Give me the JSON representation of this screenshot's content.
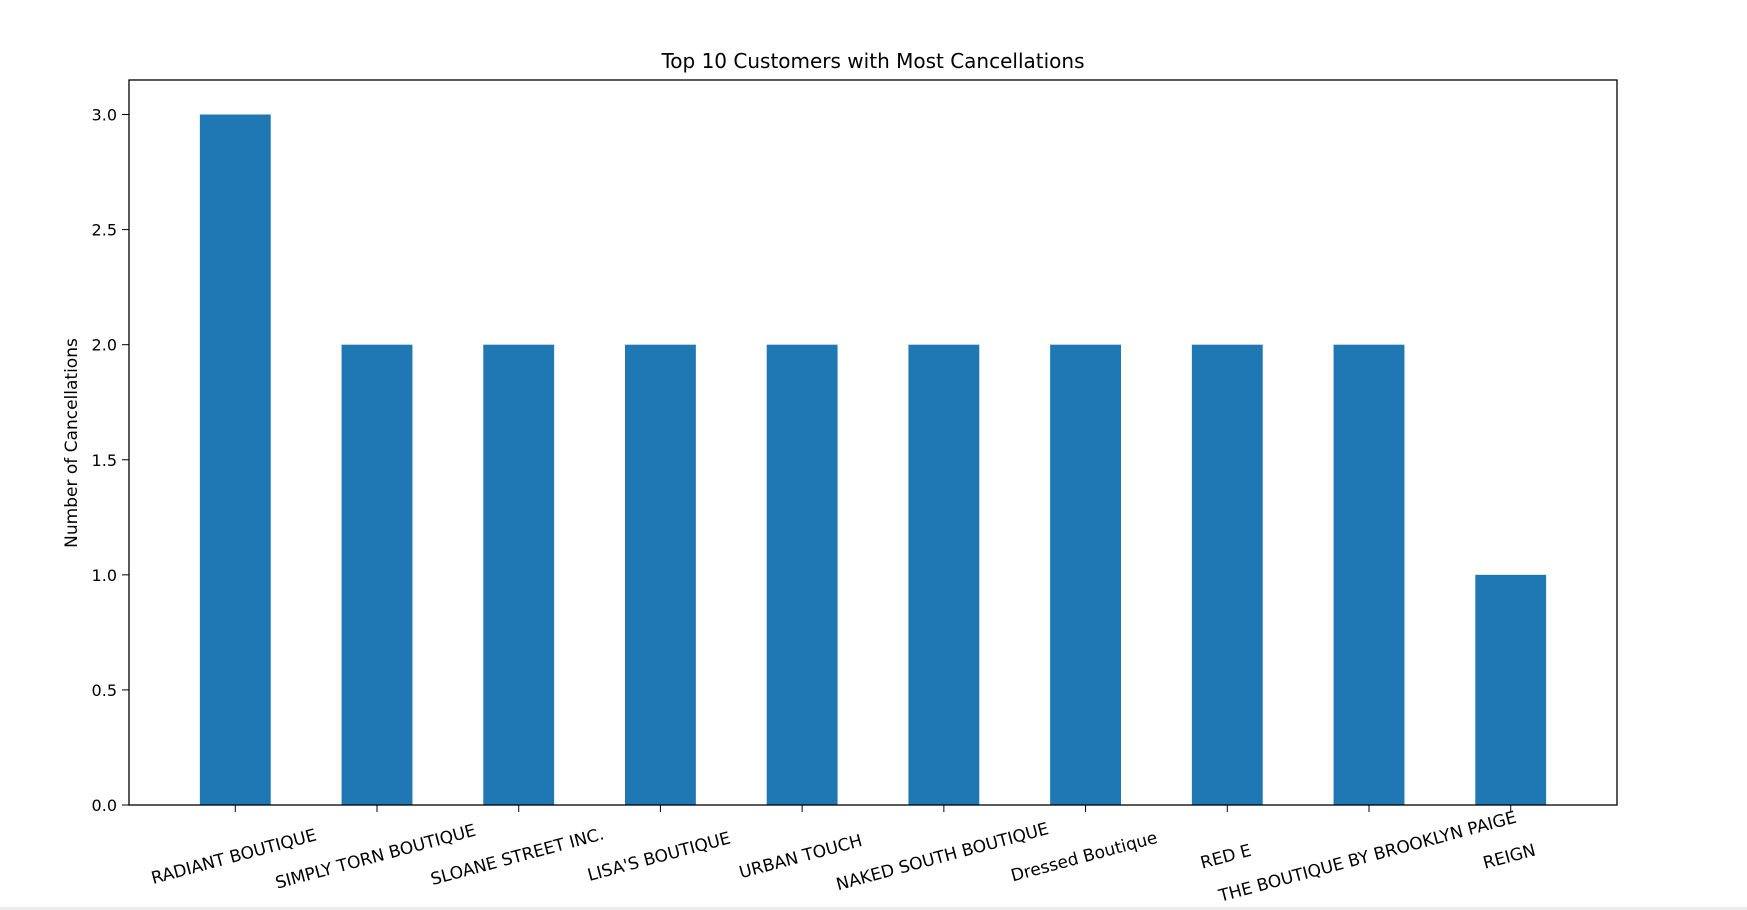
{
  "chart_data": {
    "type": "bar",
    "title": "Top 10 Customers with Most Cancellations",
    "xlabel": "",
    "ylabel": "Number of Cancellations",
    "categories": [
      "RADIANT BOUTIQUE",
      "SIMPLY TORN BOUTIQUE",
      "SLOANE STREET INC.",
      "LISA'S BOUTIQUE",
      "URBAN TOUCH",
      "NAKED SOUTH BOUTIQUE",
      "Dressed Boutique",
      "RED E",
      "THE BOUTIQUE BY BROOKLYN PAIGE",
      "REIGN"
    ],
    "values": [
      3,
      2,
      2,
      2,
      2,
      2,
      2,
      2,
      2,
      1
    ],
    "ylim": [
      0,
      3.15
    ],
    "yticks": [
      "0.0",
      "0.5",
      "1.0",
      "1.5",
      "2.0",
      "2.5",
      "3.0"
    ],
    "bar_color": "#1f77b4",
    "grid": false,
    "legend": "none"
  }
}
